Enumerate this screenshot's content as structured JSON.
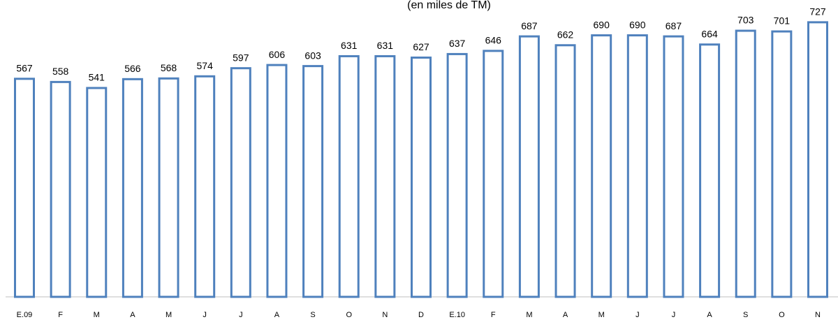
{
  "chart_data": {
    "type": "bar",
    "subtitle": "(en miles de TM)",
    "categories": [
      "E.09",
      "F",
      "M",
      "A",
      "M",
      "J",
      "J",
      "A",
      "S",
      "O",
      "N",
      "D",
      "E.10",
      "F",
      "M",
      "A",
      "M",
      "J",
      "J",
      "A",
      "S",
      "O",
      "N"
    ],
    "values": [
      567,
      558,
      541,
      566,
      568,
      574,
      597,
      606,
      603,
      631,
      631,
      627,
      637,
      646,
      687,
      662,
      690,
      690,
      687,
      664,
      703,
      701,
      727
    ],
    "color": "#4f81bd",
    "ylim": [
      -50,
      790
    ]
  }
}
